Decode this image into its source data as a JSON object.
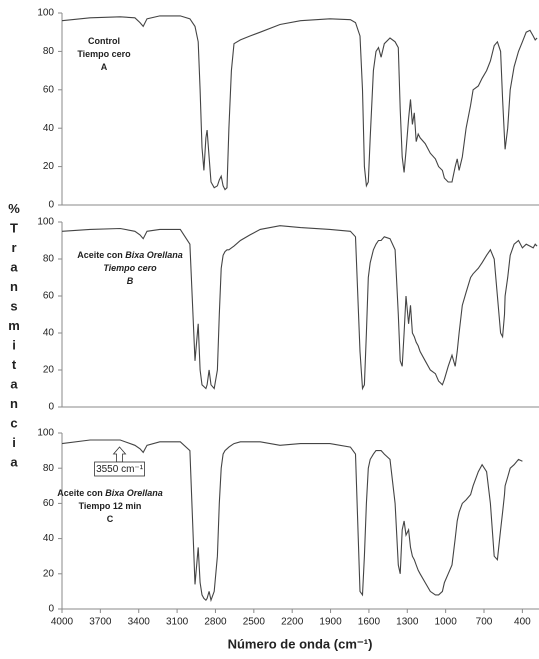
{
  "chart_data": [
    {
      "type": "line",
      "color": "#444444",
      "x": [
        4000,
        3780,
        3545,
        3430,
        3390,
        3365,
        3335,
        3235,
        3075,
        3000,
        2960,
        2935,
        2920,
        2905,
        2890,
        2875,
        2865,
        2850,
        2835,
        2810,
        2785,
        2770,
        2755,
        2740,
        2725,
        2710,
        2695,
        2675,
        2655,
        2605,
        2530,
        2450,
        2295,
        2135,
        1905,
        1745,
        1705,
        1670,
        1650,
        1635,
        1620,
        1605,
        1590,
        1565,
        1545,
        1525,
        1505,
        1480,
        1435,
        1395,
        1370,
        1355,
        1340,
        1325,
        1310,
        1290,
        1275,
        1260,
        1245,
        1230,
        1215,
        1200,
        1160,
        1120,
        1080,
        1055,
        1025,
        1010,
        980,
        950,
        925,
        910,
        895,
        870,
        840,
        805,
        785,
        745,
        715,
        680,
        650,
        620,
        595,
        570,
        555,
        540,
        535,
        515,
        495,
        465,
        430,
        400,
        370,
        340,
        315,
        300,
        285
      ],
      "values": [
        96,
        97.5,
        98,
        97.5,
        95,
        93,
        97,
        98.5,
        98.5,
        97,
        93,
        85,
        60,
        30,
        18,
        35,
        39,
        25,
        12,
        9,
        10,
        13,
        15,
        10,
        8,
        9,
        40,
        70,
        84,
        86,
        88,
        90,
        94,
        96,
        97,
        96.5,
        95,
        88,
        60,
        20,
        10,
        12,
        35,
        70,
        80,
        82,
        77,
        84,
        87,
        85,
        82,
        50,
        25,
        17,
        28,
        45,
        55,
        42,
        48,
        33,
        37,
        35,
        32,
        27,
        24,
        20,
        18,
        14,
        12,
        12,
        20,
        24,
        18,
        25,
        40,
        52,
        60,
        62,
        66,
        70,
        75,
        83,
        85,
        80,
        55,
        35,
        29,
        40,
        60,
        72,
        80,
        85,
        90,
        91,
        88,
        86,
        87
      ],
      "xlim": [
        4000,
        270
      ],
      "ylim": [
        0,
        100
      ],
      "yticks": [
        0,
        20,
        40,
        60,
        80,
        100
      ],
      "annotation": [
        [
          {
            "text": "Control",
            "italic": false
          }
        ],
        [
          {
            "text": "Tiempo cero",
            "italic": false
          }
        ],
        [
          {
            "text": "A",
            "italic": false
          }
        ]
      ]
    },
    {
      "type": "line",
      "color": "#444444",
      "x": [
        4000,
        3780,
        3545,
        3430,
        3390,
        3365,
        3335,
        3235,
        3075,
        3000,
        2960,
        2935,
        2920,
        2905,
        2890,
        2875,
        2865,
        2850,
        2835,
        2810,
        2785,
        2770,
        2755,
        2740,
        2725,
        2710,
        2695,
        2675,
        2655,
        2605,
        2530,
        2450,
        2295,
        2135,
        1905,
        1745,
        1705,
        1670,
        1650,
        1635,
        1620,
        1605,
        1590,
        1565,
        1545,
        1525,
        1505,
        1480,
        1435,
        1395,
        1370,
        1355,
        1340,
        1325,
        1310,
        1290,
        1275,
        1260,
        1245,
        1230,
        1215,
        1200,
        1160,
        1120,
        1080,
        1055,
        1025,
        1010,
        980,
        950,
        925,
        910,
        895,
        870,
        840,
        805,
        785,
        745,
        715,
        680,
        650,
        620,
        595,
        570,
        555,
        540,
        535,
        515,
        495,
        465,
        430,
        400,
        370,
        340,
        315,
        300,
        285
      ],
      "values": [
        95,
        96,
        96.5,
        95,
        93,
        91,
        95,
        96,
        96,
        88,
        25,
        45,
        20,
        12,
        11,
        10,
        12,
        20,
        12,
        10,
        20,
        50,
        75,
        82,
        84,
        85,
        85,
        86,
        87,
        90,
        93,
        96,
        98,
        97,
        96,
        95,
        92,
        30,
        10,
        12,
        40,
        70,
        78,
        85,
        88,
        90,
        90,
        92,
        91,
        85,
        50,
        25,
        22,
        40,
        60,
        45,
        55,
        40,
        38,
        35,
        33,
        30,
        25,
        20,
        18,
        14,
        12,
        15,
        22,
        28,
        22,
        30,
        40,
        55,
        62,
        70,
        72,
        75,
        78,
        82,
        85,
        80,
        60,
        40,
        38,
        50,
        60,
        70,
        82,
        88,
        90,
        86,
        88,
        87,
        86,
        88,
        87
      ],
      "xlim": [
        4000,
        270
      ],
      "ylim": [
        0,
        100
      ],
      "yticks": [
        0,
        20,
        40,
        60,
        80,
        100
      ],
      "ylabel": "% Transmitancia",
      "annotation": [
        [
          {
            "text": "Aceite con ",
            "italic": false
          },
          {
            "text": "Bixa Orellana",
            "italic": true
          }
        ],
        [
          {
            "text": "Tiempo cero",
            "italic": true
          }
        ],
        [
          {
            "text": "B",
            "italic": true
          }
        ]
      ]
    },
    {
      "type": "line",
      "color": "#444444",
      "x": [
        4000,
        3780,
        3545,
        3430,
        3390,
        3365,
        3335,
        3235,
        3075,
        3000,
        2960,
        2935,
        2920,
        2905,
        2890,
        2875,
        2865,
        2850,
        2835,
        2810,
        2785,
        2770,
        2755,
        2740,
        2725,
        2710,
        2695,
        2675,
        2655,
        2605,
        2530,
        2450,
        2295,
        2135,
        1905,
        1745,
        1705,
        1670,
        1650,
        1635,
        1620,
        1605,
        1590,
        1565,
        1545,
        1525,
        1505,
        1480,
        1435,
        1395,
        1370,
        1355,
        1340,
        1325,
        1310,
        1290,
        1275,
        1260,
        1245,
        1230,
        1215,
        1200,
        1160,
        1120,
        1080,
        1055,
        1025,
        1010,
        980,
        950,
        925,
        910,
        895,
        870,
        840,
        805,
        785,
        745,
        715,
        680,
        650,
        620,
        595,
        570,
        555,
        540,
        535,
        515,
        495,
        465,
        430,
        400
      ],
      "values": [
        94,
        96,
        96,
        93,
        91,
        89,
        93,
        95,
        95,
        90,
        14,
        35,
        15,
        8,
        6,
        5,
        6,
        10,
        5,
        10,
        30,
        60,
        80,
        88,
        90,
        91,
        92,
        93,
        94,
        95,
        95,
        95,
        93,
        94,
        94,
        92,
        88,
        10,
        8,
        30,
        60,
        80,
        85,
        88,
        90,
        90,
        90,
        88,
        85,
        60,
        25,
        20,
        45,
        50,
        42,
        45,
        35,
        30,
        28,
        25,
        22,
        20,
        15,
        10,
        8,
        8,
        10,
        15,
        20,
        25,
        40,
        50,
        55,
        60,
        62,
        65,
        70,
        78,
        82,
        78,
        60,
        30,
        28,
        45,
        55,
        65,
        70,
        75,
        80,
        82,
        85,
        84
      ],
      "xlim": [
        4000,
        270
      ],
      "ylim": [
        0,
        100
      ],
      "yticks": [
        0,
        20,
        40,
        60,
        80,
        100
      ],
      "xticks": [
        4000,
        3700,
        3400,
        3100,
        2800,
        2500,
        2200,
        1900,
        1600,
        1300,
        1000,
        700,
        400
      ],
      "xlabel": "Número de onda (cm⁻¹)",
      "callout": {
        "label": "3550 cm⁻¹",
        "x": 3550
      },
      "annotation": [
        [
          {
            "text": "Aceite con ",
            "italic": false
          },
          {
            "text": "Bixa Orellana",
            "italic": true
          }
        ],
        [
          {
            "text": "Tiempo 12 min",
            "italic": false
          }
        ],
        [
          {
            "text": "C",
            "italic": false
          }
        ]
      ]
    }
  ]
}
